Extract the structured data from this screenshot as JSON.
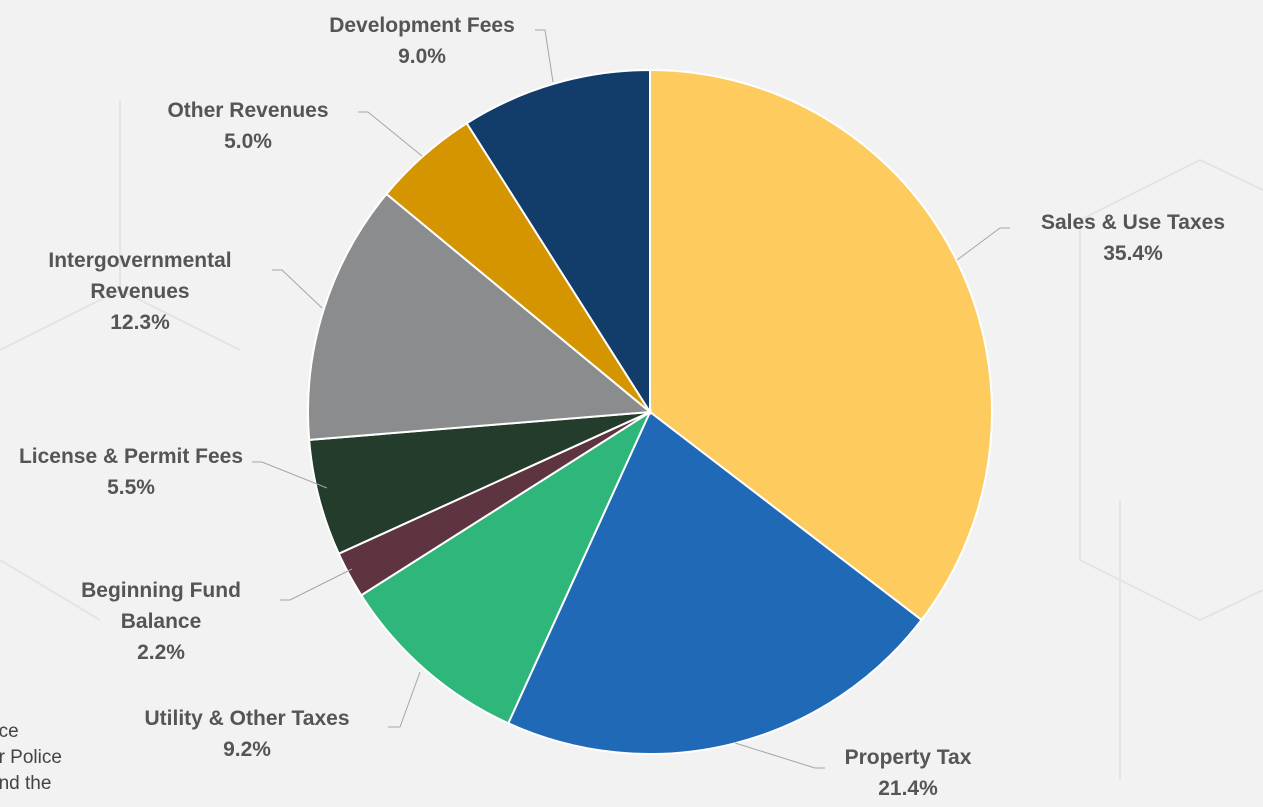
{
  "chart_data": {
    "type": "pie",
    "categories": [
      "Sales & Use Taxes",
      "Property Tax",
      "Utility & Other Taxes",
      "Beginning Fund Balance",
      "License & Permit Fees",
      "Intergovernmental Revenues",
      "Other Revenues",
      "Development Fees"
    ],
    "values": [
      35.4,
      21.4,
      9.2,
      2.2,
      5.5,
      12.3,
      5.0,
      9.0
    ],
    "value_labels": [
      "35.4%",
      "21.4%",
      "9.2%",
      "2.2%",
      "5.5%",
      "12.3%",
      "5.0%",
      "9.0%"
    ],
    "colors": [
      "#fdcb5e",
      "#1f69b6",
      "#2fb67a",
      "#5e3441",
      "#243c2c",
      "#8b8c8e",
      "#d49500",
      "#123d6b"
    ]
  },
  "background_text": [
    "nce",
    "or Police",
    "and the"
  ]
}
